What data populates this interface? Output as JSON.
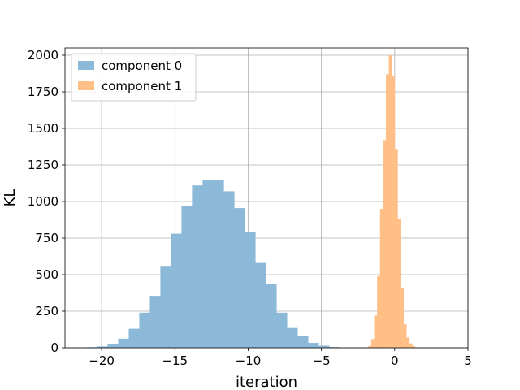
{
  "chart_data": {
    "type": "histogram",
    "xlabel": "iteration",
    "ylabel": "KL",
    "xlim": [
      -22.5,
      5
    ],
    "ylim": [
      0,
      2050
    ],
    "xticks": [
      -20,
      -15,
      -10,
      -5,
      0,
      5
    ],
    "xtick_labels": [
      "−20",
      "−15",
      "−10",
      "−5",
      "0",
      "5"
    ],
    "yticks": [
      0,
      250,
      500,
      750,
      1000,
      1250,
      1500,
      1750,
      2000
    ],
    "ytick_labels": [
      "0",
      "250",
      "500",
      "750",
      "1000",
      "1250",
      "1500",
      "1750",
      "2000"
    ],
    "grid": true,
    "legend_position": "top-left",
    "series": [
      {
        "name": "component 0",
        "color": "#8db9d9",
        "bin_start": -21.75,
        "bin_width": 0.72,
        "counts": [
          2,
          4,
          9,
          28,
          62,
          130,
          240,
          355,
          560,
          780,
          970,
          1110,
          1145,
          1145,
          1070,
          955,
          790,
          580,
          435,
          240,
          135,
          78,
          33,
          14,
          5,
          2
        ]
      },
      {
        "name": "component 1",
        "color": "#ffbf86",
        "bin_start": -2.0,
        "bin_width": 0.2,
        "counts": [
          3,
          12,
          60,
          220,
          490,
          950,
          1420,
          1870,
          2000,
          1860,
          1360,
          880,
          410,
          160,
          70,
          30,
          10,
          4,
          2
        ]
      }
    ]
  }
}
